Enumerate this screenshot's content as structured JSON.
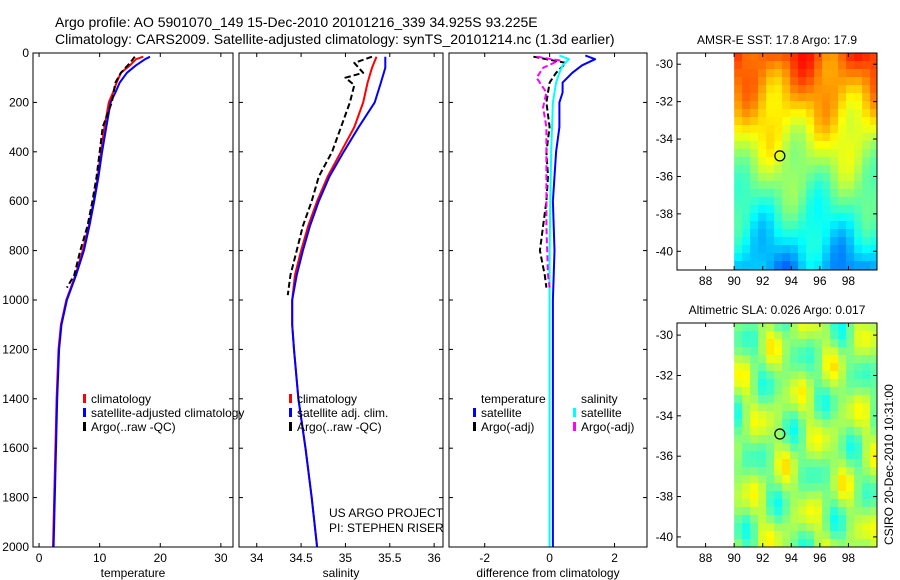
{
  "header": {
    "line1": "Argo profile: AO 5901070_149 15-Dec-2010 20101216_339 34.925S 93.225E",
    "line2": "Climatology: CARS2009. Satellite-adjusted climatology: synTS_20101214.nc (1.3d earlier)"
  },
  "credits": {
    "line1": "US ARGO PROJECT",
    "line2": "PI: STEPHEN RISER"
  },
  "side_label": "CSIRO 20-Dec-2010 10:31:00",
  "colors": {
    "red": "#ff0000",
    "blue": "#0000ff",
    "black": "#000000",
    "cyan": "#00ffff",
    "magenta": "#ff00ff"
  },
  "depth_axis": {
    "ylim": [
      0,
      2000
    ],
    "ticks": [
      0,
      200,
      400,
      600,
      800,
      1000,
      1200,
      1400,
      1600,
      1800,
      2000
    ],
    "tick_labels": [
      "0",
      "200",
      "400",
      "600",
      "800",
      "1000",
      "1200",
      "1400",
      "1600",
      "1800",
      "2000"
    ]
  },
  "chart_data": [
    {
      "type": "line",
      "id": "temperature",
      "xlabel": "temperature",
      "xlim": [
        -1,
        32
      ],
      "xticks": [
        0,
        10,
        20,
        30
      ],
      "xtick_labels": [
        "0",
        "10",
        "20",
        "30"
      ],
      "legend": [
        "climatology",
        "satellite-adjusted climatology",
        "Argo(..raw -QC)"
      ],
      "series": [
        {
          "name": "climatology",
          "color": "red",
          "dash": "",
          "points": [
            [
              17.2,
              15
            ],
            [
              16.0,
              25
            ],
            [
              15.0,
              50
            ],
            [
              13.5,
              80
            ],
            [
              12.8,
              120
            ],
            [
              12.2,
              160
            ],
            [
              11.5,
              200
            ],
            [
              10.8,
              300
            ],
            [
              10.2,
              400
            ],
            [
              9.7,
              500
            ],
            [
              9.0,
              600
            ],
            [
              8.2,
              700
            ],
            [
              7.2,
              800
            ],
            [
              6.0,
              900
            ],
            [
              4.5,
              1000
            ],
            [
              3.6,
              1100
            ],
            [
              3.2,
              1200
            ],
            [
              2.9,
              1400
            ],
            [
              2.7,
              1600
            ],
            [
              2.5,
              1800
            ],
            [
              2.3,
              2000
            ]
          ]
        },
        {
          "name": "satellite-adjusted climatology",
          "color": "blue",
          "dash": "",
          "points": [
            [
              18.3,
              15
            ],
            [
              17.5,
              25
            ],
            [
              16.0,
              50
            ],
            [
              14.5,
              80
            ],
            [
              13.3,
              120
            ],
            [
              12.6,
              160
            ],
            [
              11.8,
              200
            ],
            [
              11.1,
              300
            ],
            [
              10.4,
              400
            ],
            [
              9.8,
              500
            ],
            [
              9.1,
              600
            ],
            [
              8.3,
              700
            ],
            [
              7.4,
              800
            ],
            [
              6.1,
              900
            ],
            [
              4.6,
              1000
            ],
            [
              3.7,
              1100
            ],
            [
              3.3,
              1200
            ],
            [
              3.0,
              1400
            ],
            [
              2.8,
              1600
            ],
            [
              2.6,
              1800
            ],
            [
              2.4,
              2000
            ]
          ]
        },
        {
          "name": "Argo(..raw -QC)",
          "color": "black",
          "dash": "6,3",
          "points": [
            [
              15.8,
              15
            ],
            [
              15.0,
              40
            ],
            [
              13.5,
              80
            ],
            [
              12.6,
              120
            ],
            [
              12.0,
              200
            ],
            [
              10.5,
              300
            ],
            [
              10.0,
              400
            ],
            [
              9.5,
              500
            ],
            [
              8.8,
              600
            ],
            [
              8.0,
              700
            ],
            [
              6.8,
              800
            ],
            [
              5.8,
              900
            ],
            [
              4.6,
              950
            ]
          ]
        }
      ]
    },
    {
      "type": "line",
      "id": "salinity",
      "xlabel": "salinity",
      "xlim": [
        33.8,
        36.1
      ],
      "xticks": [
        34,
        34.5,
        35,
        35.5,
        36
      ],
      "xtick_labels": [
        "34",
        "34.5",
        "35",
        "35.5",
        "36"
      ],
      "legend": [
        "climatology",
        "satellite adj. clim.",
        "Argo(..raw -QC)"
      ],
      "series": [
        {
          "name": "climatology",
          "color": "red",
          "dash": "",
          "points": [
            [
              35.35,
              15
            ],
            [
              35.3,
              60
            ],
            [
              35.25,
              120
            ],
            [
              35.2,
              200
            ],
            [
              35.1,
              300
            ],
            [
              34.95,
              400
            ],
            [
              34.8,
              500
            ],
            [
              34.68,
              600
            ],
            [
              34.58,
              700
            ],
            [
              34.5,
              800
            ],
            [
              34.43,
              900
            ],
            [
              34.4,
              1000
            ],
            [
              34.4,
              1100
            ],
            [
              34.42,
              1200
            ],
            [
              34.47,
              1400
            ],
            [
              34.55,
              1600
            ],
            [
              34.62,
              1800
            ],
            [
              34.68,
              2000
            ]
          ]
        },
        {
          "name": "satellite adj. clim.",
          "color": "blue",
          "dash": "",
          "points": [
            [
              35.45,
              15
            ],
            [
              35.45,
              60
            ],
            [
              35.4,
              120
            ],
            [
              35.33,
              200
            ],
            [
              35.15,
              300
            ],
            [
              34.98,
              400
            ],
            [
              34.82,
              500
            ],
            [
              34.7,
              600
            ],
            [
              34.6,
              700
            ],
            [
              34.52,
              800
            ],
            [
              34.45,
              900
            ],
            [
              34.4,
              1000
            ],
            [
              34.4,
              1100
            ],
            [
              34.42,
              1200
            ],
            [
              34.47,
              1400
            ],
            [
              34.55,
              1600
            ],
            [
              34.62,
              1800
            ],
            [
              34.68,
              2000
            ]
          ]
        },
        {
          "name": "Argo(..raw -QC)",
          "color": "black",
          "dash": "6,3",
          "points": [
            [
              35.3,
              15
            ],
            [
              35.1,
              40
            ],
            [
              35.2,
              80
            ],
            [
              35.0,
              100
            ],
            [
              35.1,
              130
            ],
            [
              35.05,
              200
            ],
            [
              34.95,
              300
            ],
            [
              34.85,
              400
            ],
            [
              34.7,
              500
            ],
            [
              34.62,
              600
            ],
            [
              34.52,
              700
            ],
            [
              34.45,
              800
            ],
            [
              34.38,
              900
            ],
            [
              34.35,
              980
            ]
          ]
        }
      ]
    },
    {
      "type": "line",
      "id": "difference",
      "xlabel": "difference from climatology",
      "xlim": [
        -3.1,
        3.0
      ],
      "xticks": [
        -2,
        0,
        2
      ],
      "xtick_labels": [
        "-2",
        "0",
        "2"
      ],
      "legend_heading_left": "temperature",
      "legend_heading_right": "salinity",
      "legend_left": [
        "satellite",
        "Argo(-adj)"
      ],
      "legend_right": [
        "satellite",
        "Argo(-adj)"
      ],
      "series": [
        {
          "name": "temperature satellite",
          "color": "blue",
          "dash": "",
          "points": [
            [
              1.1,
              10
            ],
            [
              1.4,
              25
            ],
            [
              1.0,
              50
            ],
            [
              0.7,
              80
            ],
            [
              0.4,
              120
            ],
            [
              0.4,
              160
            ],
            [
              0.3,
              200
            ],
            [
              0.3,
              300
            ],
            [
              0.2,
              400
            ],
            [
              0.1,
              600
            ],
            [
              0.15,
              800
            ],
            [
              0.1,
              1000
            ],
            [
              0.1,
              1200
            ],
            [
              0.1,
              1400
            ],
            [
              0.1,
              1600
            ],
            [
              0.1,
              1800
            ],
            [
              0.1,
              2000
            ]
          ]
        },
        {
          "name": "temperature Argo(-adj)",
          "color": "black",
          "dash": "6,3",
          "points": [
            [
              -0.5,
              15
            ],
            [
              0.5,
              40
            ],
            [
              0.2,
              80
            ],
            [
              0.0,
              120
            ],
            [
              -0.1,
              200
            ],
            [
              0.0,
              300
            ],
            [
              -0.1,
              400
            ],
            [
              -0.05,
              500
            ],
            [
              -0.1,
              600
            ],
            [
              -0.2,
              700
            ],
            [
              -0.3,
              800
            ],
            [
              -0.15,
              900
            ],
            [
              -0.1,
              950
            ]
          ]
        },
        {
          "name": "salinity satellite",
          "color": "cyan",
          "dash": "",
          "points": [
            [
              0.3,
              10
            ],
            [
              0.6,
              25
            ],
            [
              0.4,
              50
            ],
            [
              0.3,
              80
            ],
            [
              0.2,
              120
            ],
            [
              0.1,
              200
            ],
            [
              0.05,
              400
            ],
            [
              0.02,
              600
            ],
            [
              0.0,
              800
            ],
            [
              0.0,
              1000
            ],
            [
              0.0,
              1200
            ],
            [
              0.0,
              1400
            ],
            [
              0.0,
              1600
            ],
            [
              0.0,
              1800
            ],
            [
              0.0,
              2000
            ]
          ]
        },
        {
          "name": "salinity Argo(-adj)",
          "color": "magenta",
          "dash": "6,3",
          "points": [
            [
              -0.4,
              15
            ],
            [
              0.3,
              30
            ],
            [
              -0.2,
              60
            ],
            [
              -0.4,
              100
            ],
            [
              -0.1,
              160
            ],
            [
              -0.2,
              220
            ],
            [
              -0.1,
              300
            ],
            [
              -0.1,
              500
            ],
            [
              -0.1,
              700
            ],
            [
              -0.05,
              900
            ],
            [
              0.0,
              950
            ]
          ]
        }
      ]
    },
    {
      "type": "heatmap",
      "id": "sst",
      "title": "AMSR-E SST: 17.8 Argo: 17.9",
      "xlim": [
        86,
        100
      ],
      "ylim": [
        -41,
        -29.4
      ],
      "xticks": [
        88,
        90,
        92,
        94,
        96,
        98
      ],
      "yticks": [
        -30,
        -32,
        -34,
        -36,
        -38,
        -40
      ],
      "xtick_labels": [
        "88",
        "90",
        "92",
        "94",
        "96",
        "98"
      ],
      "ytick_labels": [
        "-30",
        "-32",
        "-34",
        "-36",
        "-38",
        "-40"
      ],
      "data_xlim": [
        90,
        100
      ],
      "marker": {
        "lon": 93.2,
        "lat": -34.9
      }
    },
    {
      "type": "heatmap",
      "id": "sla",
      "title": "Altimetric SLA: 0.026 Argo: 0.017",
      "xlim": [
        86,
        100
      ],
      "ylim": [
        -40.5,
        -29.4
      ],
      "xticks": [
        88,
        90,
        92,
        94,
        96,
        98
      ],
      "yticks": [
        -30,
        -32,
        -34,
        -36,
        -38,
        -40
      ],
      "xtick_labels": [
        "88",
        "90",
        "92",
        "94",
        "96",
        "98"
      ],
      "ytick_labels": [
        "-30",
        "-32",
        "-34",
        "-36",
        "-38",
        "-40"
      ],
      "data_xlim": [
        90,
        100
      ],
      "marker": {
        "lon": 93.2,
        "lat": -34.9
      }
    }
  ]
}
